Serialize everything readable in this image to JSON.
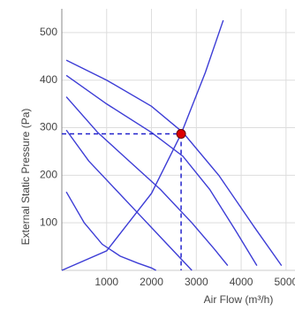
{
  "chart_data": {
    "type": "line",
    "x_label": "Air Flow (m³/h)",
    "y_label": "External Static Pressure (Pa)",
    "xlim": [
      0,
      5200
    ],
    "ylim": [
      0,
      550
    ],
    "xticks": [
      1000,
      2000,
      3000,
      4000,
      5000
    ],
    "yticks": [
      100,
      200,
      300,
      400,
      500
    ],
    "grid": true,
    "series": [
      {
        "color": "#3d3dd6",
        "x": [
          100,
          1000,
          2000,
          2700,
          3500,
          4300,
          4900
        ],
        "values": [
          442,
          400,
          345,
          290,
          200,
          90,
          10
        ]
      },
      {
        "color": "#3d3dd6",
        "x": [
          100,
          1000,
          2000,
          2700,
          3300,
          3900,
          4350
        ],
        "values": [
          410,
          350,
          290,
          240,
          170,
          80,
          10
        ]
      },
      {
        "color": "#3d3dd6",
        "x": [
          100,
          800,
          1500,
          2200,
          2900,
          3400,
          3700
        ],
        "values": [
          365,
          290,
          230,
          170,
          100,
          45,
          10
        ]
      },
      {
        "color": "#3d3dd6",
        "x": [
          100,
          600,
          1200,
          1700,
          2300,
          2700,
          2900
        ],
        "values": [
          295,
          230,
          170,
          120,
          60,
          20,
          0
        ]
      },
      {
        "color": "#3d3dd6",
        "x": [
          100,
          500,
          900,
          1300,
          1700,
          2000,
          2100
        ],
        "values": [
          165,
          100,
          55,
          30,
          15,
          5,
          0
        ]
      },
      {
        "color": "#3d3dd6",
        "x": [
          0,
          1000,
          2000,
          2660,
          3200,
          3600
        ],
        "values": [
          0,
          41,
          162,
          287,
          416,
          526
        ]
      }
    ],
    "operating_point": {
      "x": 2660,
      "y": 287,
      "color": "#dd0000"
    }
  }
}
